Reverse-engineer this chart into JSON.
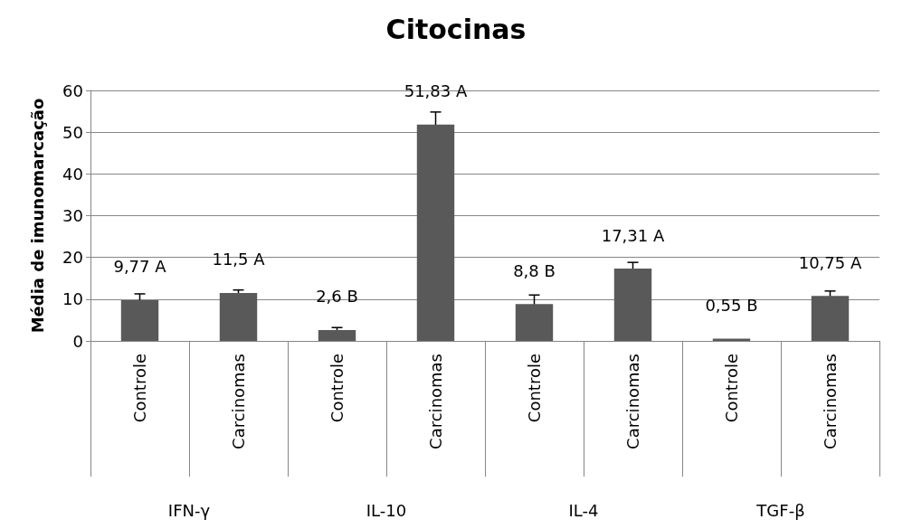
{
  "chart_data": {
    "type": "bar",
    "title": "Citocinas",
    "ylabel": "Média de imunomarcação",
    "categories": [
      "Controle",
      "Carcinomas",
      "Controle",
      "Carcinomas",
      "Controle",
      "Carcinomas",
      "Controle",
      "Carcinomas"
    ],
    "values": [
      9.77,
      11.5,
      2.6,
      51.83,
      8.8,
      17.31,
      0.55,
      10.75
    ],
    "value_labels": [
      "9,77 A",
      "11,5 A",
      "2,6 B",
      "51,83 A",
      "8,8 B",
      "17,31 A",
      "0,55 B",
      "10,75 A"
    ],
    "errors": [
      1.5,
      0.7,
      0.6,
      3,
      2.2,
      1.5,
      null,
      1.2
    ],
    "color": "#595959",
    "annotations": [
      "IFN-γ",
      "IL-10",
      "IL-4",
      "TGF-β"
    ],
    "ylim": [
      0,
      60
    ],
    "yticks": [
      0,
      10,
      20,
      30,
      40,
      50,
      60
    ],
    "grid": "y"
  }
}
